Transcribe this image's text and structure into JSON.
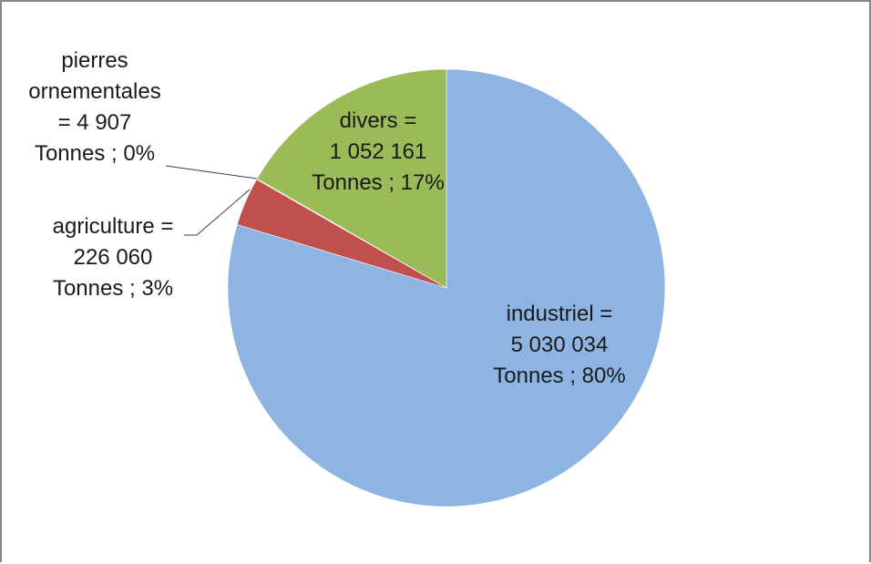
{
  "chart_data": {
    "type": "pie",
    "title": "",
    "unit": "Tonnes",
    "slices": [
      {
        "name": "industriel",
        "value": 5030034,
        "percent": 80,
        "color": "#8EB4E3",
        "label_lines": [
          "industriel =",
          "5 030 034",
          "Tonnes ; 80%"
        ]
      },
      {
        "name": "agriculture",
        "value": 226060,
        "percent": 3,
        "color": "#C0504D",
        "label_lines": [
          "agriculture =",
          "226 060",
          "Tonnes ; 3%"
        ]
      },
      {
        "name": "pierres ornementales",
        "value": 4907,
        "percent": 0,
        "color": "#9BBB59",
        "label_lines": [
          "pierres",
          "ornementales",
          "= 4 907",
          "Tonnes ; 0%"
        ]
      },
      {
        "name": "divers",
        "value": 1052161,
        "percent": 17,
        "color": "#9BBB59",
        "label_lines": [
          "divers =",
          "1 052 161",
          "Tonnes ; 17%"
        ]
      }
    ],
    "start_angle": "12 o'clock",
    "direction": "clockwise",
    "legend": "none",
    "labels": "data labels with leader lines"
  }
}
